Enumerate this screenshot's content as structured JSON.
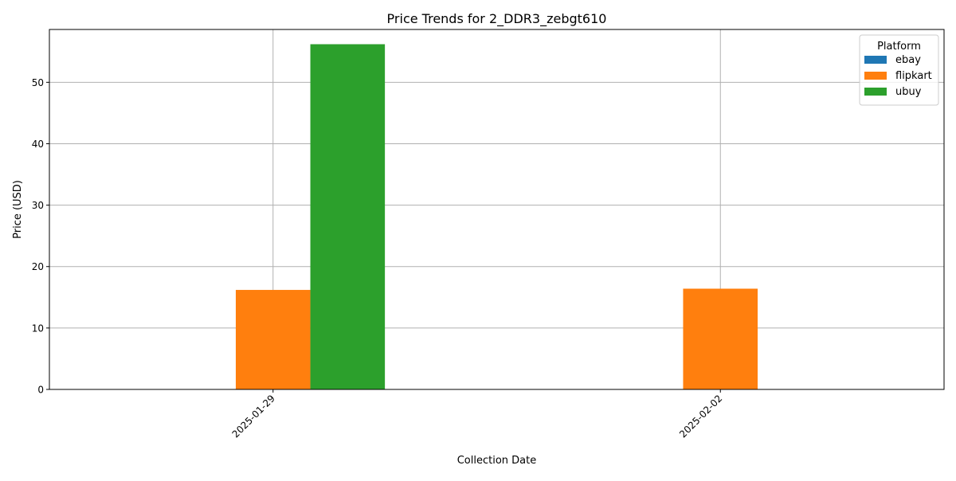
{
  "chart_data": {
    "type": "bar",
    "title": "Price Trends for 2_DDR3_zebgt610",
    "xlabel": "Collection Date",
    "ylabel": "Price (USD)",
    "categories": [
      "2025-01-29",
      "2025-02-02"
    ],
    "series": [
      {
        "name": "ebay",
        "color": "#1f77b4",
        "values": [
          null,
          null
        ]
      },
      {
        "name": "flipkart",
        "color": "#ff7f0e",
        "values": [
          16.2,
          16.4
        ]
      },
      {
        "name": "ubuy",
        "color": "#2ca02c",
        "values": [
          56.2,
          null
        ]
      }
    ],
    "ylim": [
      0,
      58.6
    ],
    "yticks": [
      0,
      10,
      20,
      30,
      40,
      50
    ],
    "grid": true,
    "legend": {
      "title": "Platform",
      "placement": "top-right"
    },
    "xtick_rotation": 45
  }
}
